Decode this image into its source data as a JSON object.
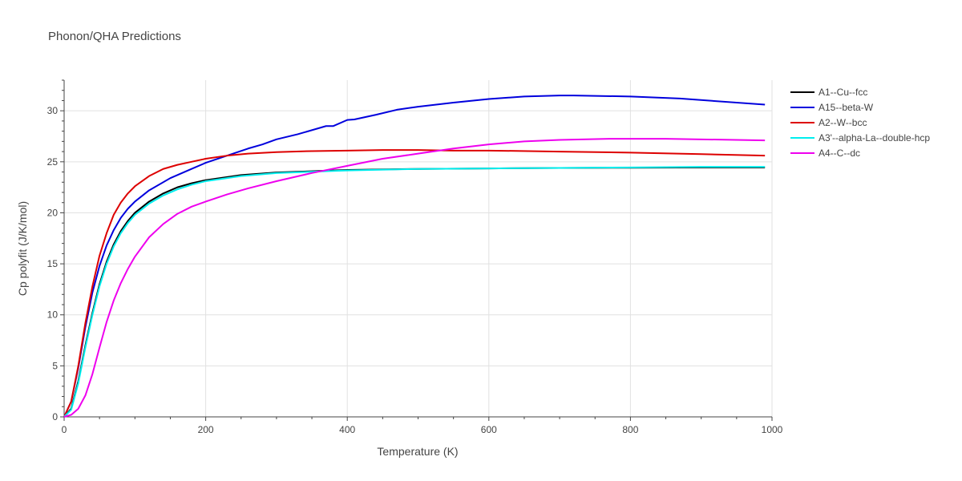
{
  "chart_data": {
    "type": "line",
    "title": "Phonon/QHA Predictions",
    "xlabel": "Temperature (K)",
    "ylabel": "Cp polyfit (J/K/mol)",
    "xlim": [
      0,
      1000
    ],
    "ylim": [
      0,
      33
    ],
    "xticks": [
      0,
      200,
      400,
      600,
      800,
      1000
    ],
    "yticks": [
      0,
      5,
      10,
      15,
      20,
      25,
      30
    ],
    "grid": true,
    "legend_position": "top-right",
    "series": [
      {
        "name": "A1--Cu--fcc",
        "color": "#000000",
        "points": [
          [
            0,
            0
          ],
          [
            10,
            0.8
          ],
          [
            20,
            3.5
          ],
          [
            30,
            7.0
          ],
          [
            40,
            10.2
          ],
          [
            50,
            13.0
          ],
          [
            60,
            15.2
          ],
          [
            70,
            16.9
          ],
          [
            80,
            18.2
          ],
          [
            90,
            19.2
          ],
          [
            100,
            20.0
          ],
          [
            120,
            21.1
          ],
          [
            140,
            21.9
          ],
          [
            160,
            22.5
          ],
          [
            180,
            22.9
          ],
          [
            200,
            23.2
          ],
          [
            250,
            23.7
          ],
          [
            300,
            23.95
          ],
          [
            400,
            24.2
          ],
          [
            500,
            24.3
          ],
          [
            600,
            24.35
          ],
          [
            700,
            24.4
          ],
          [
            800,
            24.42
          ],
          [
            900,
            24.45
          ],
          [
            990,
            24.45
          ]
        ]
      },
      {
        "name": "A15--beta-W",
        "color": "#0000dd",
        "points": [
          [
            0,
            0
          ],
          [
            10,
            1.5
          ],
          [
            20,
            4.8
          ],
          [
            30,
            8.8
          ],
          [
            40,
            12.2
          ],
          [
            50,
            14.8
          ],
          [
            60,
            16.8
          ],
          [
            70,
            18.3
          ],
          [
            80,
            19.5
          ],
          [
            90,
            20.4
          ],
          [
            100,
            21.1
          ],
          [
            120,
            22.2
          ],
          [
            150,
            23.4
          ],
          [
            180,
            24.3
          ],
          [
            200,
            24.9
          ],
          [
            230,
            25.6
          ],
          [
            260,
            26.3
          ],
          [
            280,
            26.7
          ],
          [
            300,
            27.2
          ],
          [
            330,
            27.7
          ],
          [
            370,
            28.5
          ],
          [
            380,
            28.5
          ],
          [
            400,
            29.1
          ],
          [
            410,
            29.15
          ],
          [
            440,
            29.6
          ],
          [
            470,
            30.1
          ],
          [
            500,
            30.4
          ],
          [
            550,
            30.8
          ],
          [
            600,
            31.15
          ],
          [
            650,
            31.4
          ],
          [
            700,
            31.5
          ],
          [
            720,
            31.5
          ],
          [
            800,
            31.4
          ],
          [
            870,
            31.2
          ],
          [
            990,
            30.6
          ]
        ]
      },
      {
        "name": "A2--W--bcc",
        "color": "#dd0000",
        "points": [
          [
            0,
            0
          ],
          [
            10,
            1.5
          ],
          [
            20,
            5.0
          ],
          [
            30,
            9.2
          ],
          [
            40,
            12.8
          ],
          [
            50,
            15.8
          ],
          [
            60,
            18.0
          ],
          [
            70,
            19.8
          ],
          [
            80,
            21.0
          ],
          [
            90,
            21.9
          ],
          [
            100,
            22.6
          ],
          [
            120,
            23.6
          ],
          [
            140,
            24.3
          ],
          [
            160,
            24.7
          ],
          [
            180,
            25.0
          ],
          [
            200,
            25.3
          ],
          [
            230,
            25.6
          ],
          [
            260,
            25.8
          ],
          [
            300,
            25.95
          ],
          [
            350,
            26.05
          ],
          [
            400,
            26.1
          ],
          [
            450,
            26.15
          ],
          [
            500,
            26.15
          ],
          [
            550,
            26.1
          ],
          [
            600,
            26.1
          ],
          [
            700,
            26.0
          ],
          [
            800,
            25.9
          ],
          [
            900,
            25.75
          ],
          [
            990,
            25.6
          ]
        ]
      },
      {
        "name": "A3'--alpha-La--double-hcp",
        "color": "#00eeee",
        "points": [
          [
            0,
            0
          ],
          [
            10,
            0.7
          ],
          [
            20,
            3.3
          ],
          [
            30,
            6.8
          ],
          [
            40,
            10.0
          ],
          [
            50,
            12.8
          ],
          [
            60,
            15.0
          ],
          [
            70,
            16.7
          ],
          [
            80,
            18.0
          ],
          [
            90,
            19.0
          ],
          [
            100,
            19.8
          ],
          [
            120,
            20.9
          ],
          [
            140,
            21.7
          ],
          [
            160,
            22.3
          ],
          [
            180,
            22.75
          ],
          [
            200,
            23.1
          ],
          [
            250,
            23.6
          ],
          [
            300,
            23.9
          ],
          [
            400,
            24.15
          ],
          [
            500,
            24.3
          ],
          [
            600,
            24.35
          ],
          [
            700,
            24.4
          ],
          [
            800,
            24.45
          ],
          [
            900,
            24.5
          ],
          [
            990,
            24.5
          ]
        ]
      },
      {
        "name": "A4--C--dc",
        "color": "#ee00ee",
        "points": [
          [
            0,
            0
          ],
          [
            10,
            0.2
          ],
          [
            20,
            0.8
          ],
          [
            30,
            2.1
          ],
          [
            40,
            4.2
          ],
          [
            50,
            6.8
          ],
          [
            60,
            9.3
          ],
          [
            70,
            11.4
          ],
          [
            80,
            13.1
          ],
          [
            90,
            14.5
          ],
          [
            100,
            15.7
          ],
          [
            120,
            17.6
          ],
          [
            140,
            18.9
          ],
          [
            160,
            19.9
          ],
          [
            180,
            20.6
          ],
          [
            200,
            21.1
          ],
          [
            230,
            21.8
          ],
          [
            260,
            22.4
          ],
          [
            300,
            23.1
          ],
          [
            350,
            23.9
          ],
          [
            400,
            24.6
          ],
          [
            450,
            25.3
          ],
          [
            500,
            25.8
          ],
          [
            550,
            26.3
          ],
          [
            600,
            26.7
          ],
          [
            650,
            27.0
          ],
          [
            700,
            27.15
          ],
          [
            770,
            27.25
          ],
          [
            850,
            27.25
          ],
          [
            900,
            27.2
          ],
          [
            990,
            27.1
          ]
        ]
      }
    ]
  }
}
